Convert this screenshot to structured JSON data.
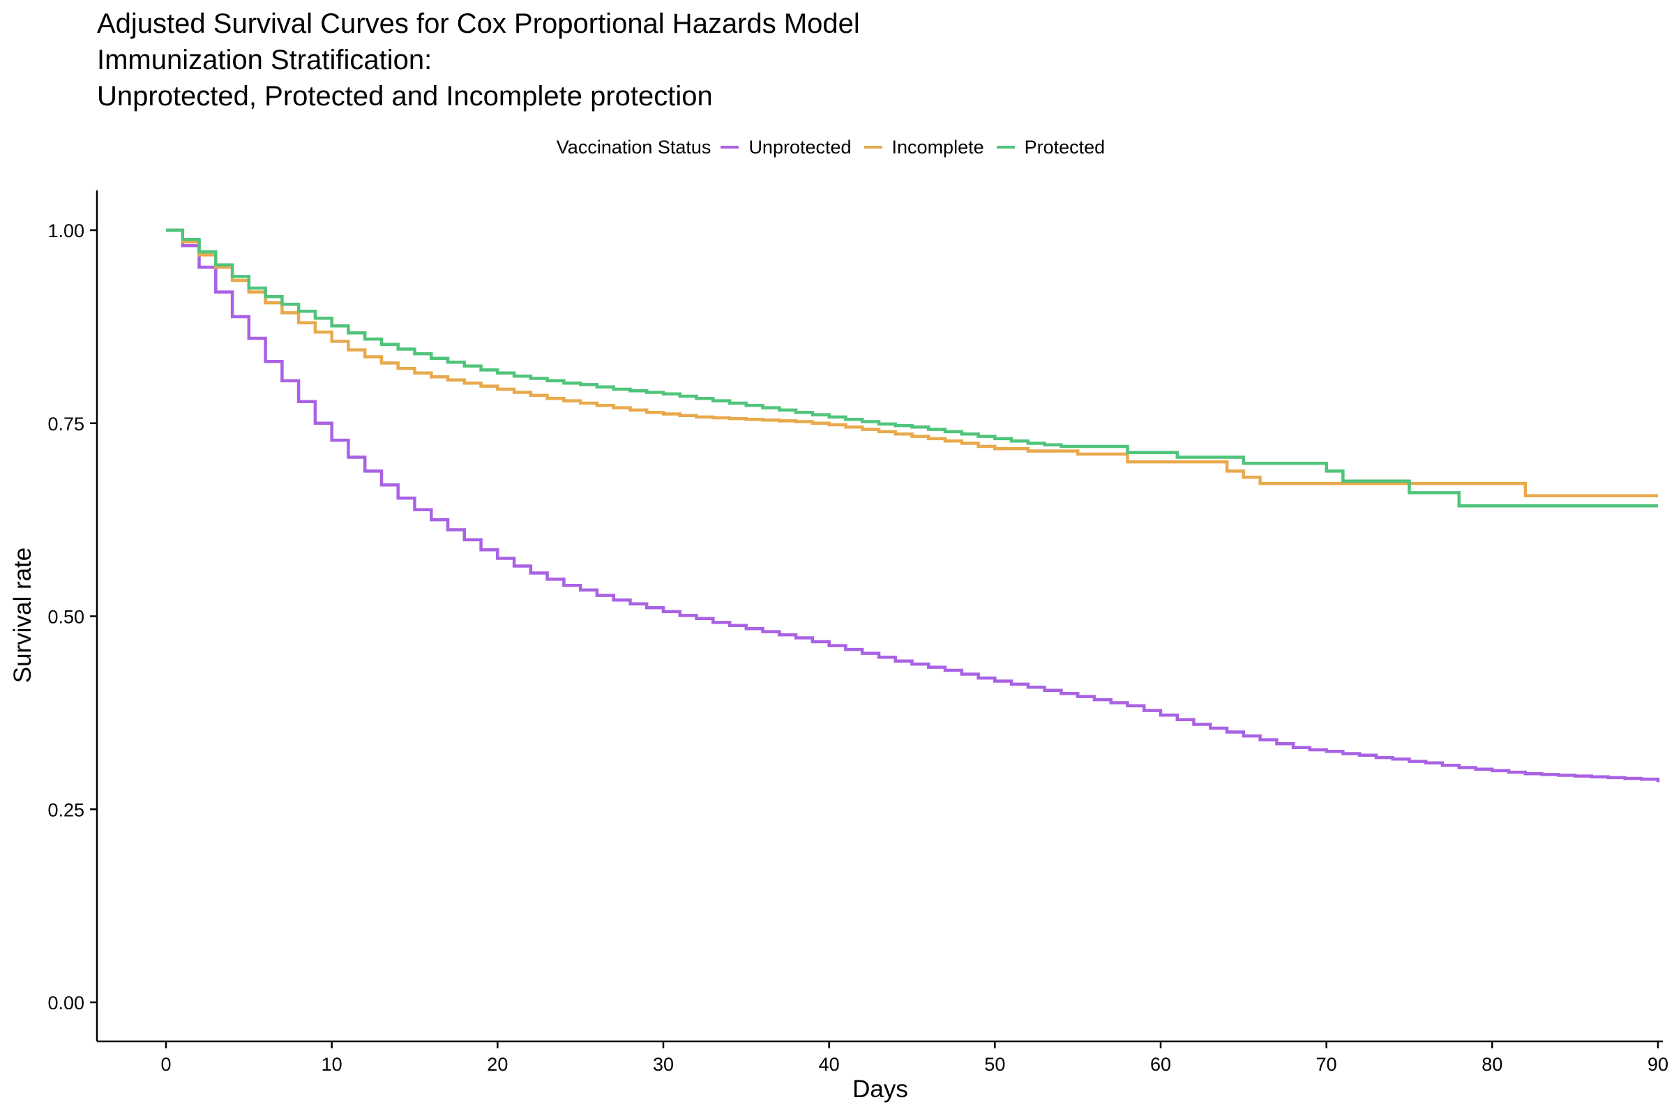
{
  "title_lines": [
    "Adjusted Survival Curves for Cox Proportional Hazards Model",
    "Immunization Stratification:",
    "Unprotected, Protected and Incomplete protection"
  ],
  "legend": {
    "title": "Vaccination Status",
    "placement": "top",
    "items": [
      "Unprotected",
      "Incomplete",
      "Protected"
    ]
  },
  "chart_data": {
    "type": "line",
    "step": true,
    "title": "Adjusted Survival Curves for Cox Proportional Hazards Model Immunization Stratification: Unprotected, Protected and Incomplete protection",
    "xlabel": "Days",
    "ylabel": "Survival rate",
    "xlim": [
      0,
      90
    ],
    "ylim": [
      0,
      1
    ],
    "xticks": [
      "0",
      "10",
      "20",
      "30",
      "40",
      "50",
      "60",
      "70",
      "80",
      "90"
    ],
    "yticks": [
      "0.00",
      "0.25",
      "0.50",
      "0.75",
      "1.00"
    ],
    "xtick_values": [
      0,
      10,
      20,
      30,
      40,
      50,
      60,
      70,
      80,
      90
    ],
    "ytick_values": [
      0,
      0.25,
      0.5,
      0.75,
      1.0
    ],
    "grid": false,
    "series": [
      {
        "name": "Unprotected",
        "color": "#A962E3",
        "x": [
          0,
          1,
          2,
          3,
          4,
          5,
          6,
          7,
          8,
          9,
          10,
          11,
          12,
          13,
          14,
          15,
          16,
          17,
          18,
          19,
          20,
          21,
          22,
          23,
          24,
          25,
          26,
          27,
          28,
          29,
          30,
          31,
          32,
          33,
          34,
          35,
          36,
          37,
          38,
          39,
          40,
          41,
          42,
          43,
          44,
          45,
          46,
          47,
          48,
          49,
          50,
          51,
          52,
          53,
          54,
          55,
          56,
          57,
          58,
          59,
          60,
          61,
          62,
          63,
          64,
          65,
          66,
          67,
          68,
          69,
          70,
          71,
          72,
          73,
          74,
          75,
          76,
          77,
          78,
          79,
          80,
          81,
          82,
          83,
          84,
          85,
          86,
          87,
          88,
          89,
          90
        ],
        "y": [
          1.0,
          0.98,
          0.952,
          0.92,
          0.888,
          0.86,
          0.83,
          0.805,
          0.778,
          0.75,
          0.728,
          0.706,
          0.688,
          0.67,
          0.653,
          0.638,
          0.625,
          0.612,
          0.599,
          0.586,
          0.575,
          0.565,
          0.556,
          0.548,
          0.54,
          0.534,
          0.527,
          0.521,
          0.516,
          0.511,
          0.506,
          0.501,
          0.497,
          0.492,
          0.488,
          0.484,
          0.48,
          0.476,
          0.472,
          0.467,
          0.462,
          0.457,
          0.452,
          0.447,
          0.442,
          0.438,
          0.434,
          0.43,
          0.425,
          0.42,
          0.416,
          0.412,
          0.408,
          0.404,
          0.4,
          0.396,
          0.392,
          0.388,
          0.384,
          0.378,
          0.372,
          0.366,
          0.36,
          0.355,
          0.35,
          0.345,
          0.34,
          0.335,
          0.33,
          0.327,
          0.325,
          0.322,
          0.32,
          0.317,
          0.315,
          0.312,
          0.31,
          0.307,
          0.304,
          0.302,
          0.3,
          0.298,
          0.296,
          0.295,
          0.294,
          0.293,
          0.292,
          0.291,
          0.29,
          0.289,
          0.285
        ]
      },
      {
        "name": "Incomplete",
        "color": "#E9A94C",
        "x": [
          0,
          1,
          2,
          3,
          4,
          5,
          6,
          7,
          8,
          9,
          10,
          11,
          12,
          13,
          14,
          15,
          16,
          17,
          18,
          19,
          20,
          21,
          22,
          23,
          24,
          25,
          26,
          27,
          28,
          29,
          30,
          31,
          32,
          33,
          34,
          35,
          36,
          37,
          38,
          39,
          40,
          41,
          42,
          43,
          44,
          45,
          46,
          47,
          48,
          49,
          50,
          52,
          55,
          58,
          61,
          64,
          65,
          66,
          72,
          82,
          90
        ],
        "y": [
          1.0,
          0.985,
          0.968,
          0.952,
          0.935,
          0.92,
          0.906,
          0.893,
          0.88,
          0.868,
          0.856,
          0.845,
          0.836,
          0.828,
          0.821,
          0.815,
          0.81,
          0.806,
          0.802,
          0.798,
          0.794,
          0.79,
          0.786,
          0.782,
          0.779,
          0.776,
          0.773,
          0.77,
          0.767,
          0.764,
          0.762,
          0.76,
          0.758,
          0.757,
          0.756,
          0.755,
          0.754,
          0.753,
          0.752,
          0.75,
          0.748,
          0.745,
          0.742,
          0.739,
          0.736,
          0.733,
          0.73,
          0.727,
          0.724,
          0.72,
          0.717,
          0.714,
          0.71,
          0.7,
          0.7,
          0.688,
          0.68,
          0.672,
          0.672,
          0.656,
          0.656
        ]
      },
      {
        "name": "Protected",
        "color": "#4FC47A",
        "x": [
          0,
          1,
          2,
          3,
          4,
          5,
          6,
          7,
          8,
          9,
          10,
          11,
          12,
          13,
          14,
          15,
          16,
          17,
          18,
          19,
          20,
          21,
          22,
          23,
          24,
          25,
          26,
          27,
          28,
          29,
          30,
          31,
          32,
          33,
          34,
          35,
          36,
          37,
          38,
          39,
          40,
          41,
          42,
          43,
          44,
          45,
          46,
          47,
          48,
          49,
          50,
          51,
          52,
          53,
          54,
          58,
          61,
          65,
          70,
          71,
          75,
          78,
          90
        ],
        "y": [
          1.0,
          0.988,
          0.972,
          0.955,
          0.94,
          0.925,
          0.914,
          0.904,
          0.895,
          0.886,
          0.876,
          0.867,
          0.859,
          0.852,
          0.846,
          0.84,
          0.834,
          0.829,
          0.824,
          0.819,
          0.815,
          0.811,
          0.808,
          0.805,
          0.802,
          0.8,
          0.797,
          0.794,
          0.792,
          0.79,
          0.788,
          0.785,
          0.782,
          0.779,
          0.776,
          0.773,
          0.77,
          0.767,
          0.764,
          0.761,
          0.758,
          0.755,
          0.752,
          0.749,
          0.747,
          0.745,
          0.742,
          0.739,
          0.736,
          0.733,
          0.73,
          0.727,
          0.724,
          0.722,
          0.72,
          0.712,
          0.706,
          0.698,
          0.688,
          0.675,
          0.66,
          0.643,
          0.643
        ]
      }
    ]
  }
}
